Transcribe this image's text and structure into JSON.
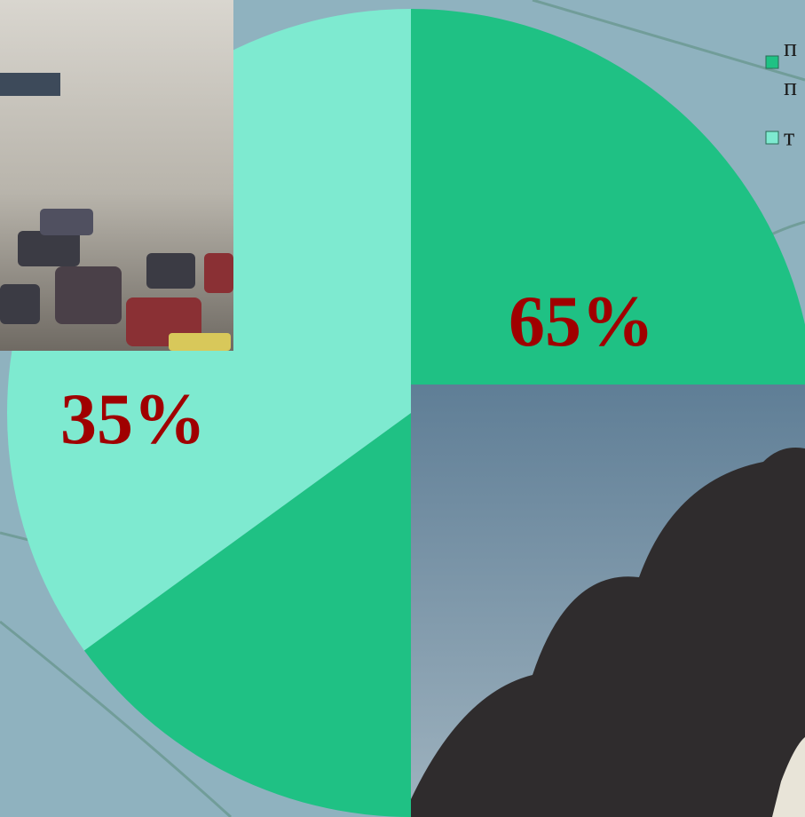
{
  "chart_data": {
    "type": "pie",
    "categories": [
      "п п",
      "т"
    ],
    "values": [
      65,
      35
    ],
    "value_labels": [
      "65%",
      "35%"
    ],
    "colors": [
      "#1fc184",
      "#7eead0"
    ]
  }
}
